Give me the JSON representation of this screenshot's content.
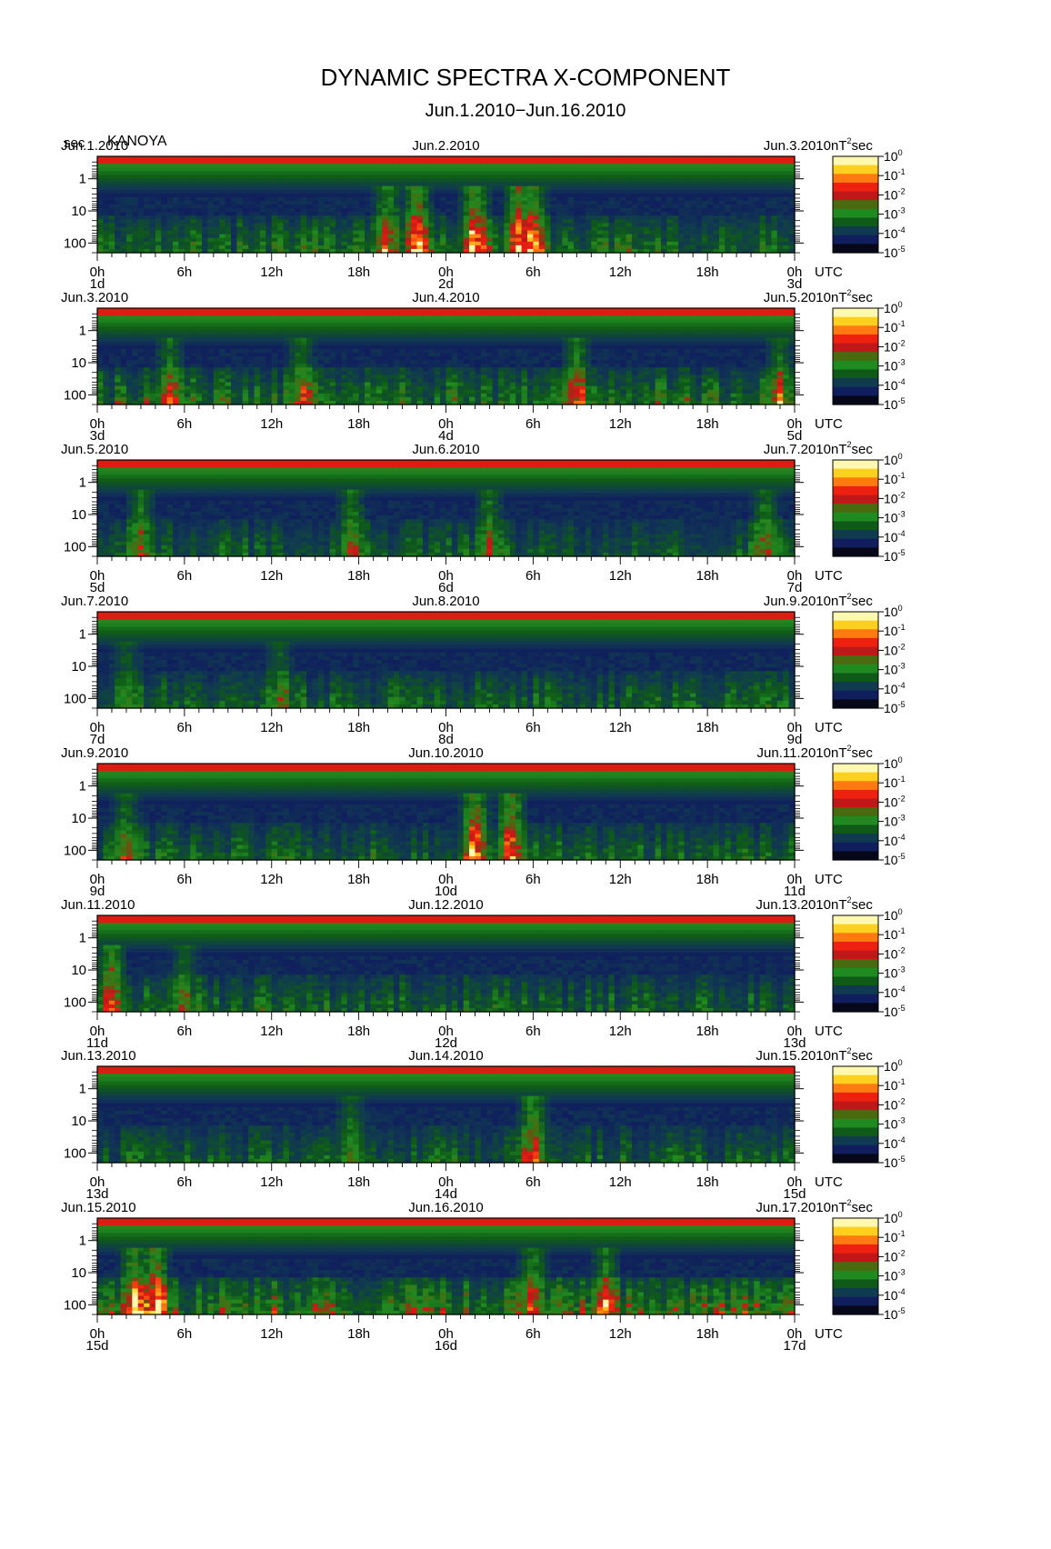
{
  "title": "DYNAMIC SPECTRA X-COMPONENT",
  "subtitle": "Jun.1.2010−Jun.16.2010",
  "unit_label": "sec",
  "station": "KANOYA",
  "colorbar_unit_base": "nT",
  "colorbar_unit_exp": "2",
  "colorbar_unit_tail": "sec",
  "colorbar_ticks": [
    {
      "base": "10",
      "exp": "0"
    },
    {
      "base": "10",
      "exp": "-1"
    },
    {
      "base": "10",
      "exp": "-2"
    },
    {
      "base": "10",
      "exp": "-3"
    },
    {
      "base": "10",
      "exp": "-4"
    },
    {
      "base": "10",
      "exp": "-5"
    }
  ],
  "colorbar_colors": [
    "#fff8b0",
    "#ffd020",
    "#ff7a10",
    "#ee2010",
    "#c01818",
    "#4a6a10",
    "#1f8a20",
    "#0f5a18",
    "#103a50",
    "#101e5e",
    "#06081a"
  ],
  "y_ticks": [
    "1",
    "10",
    "100"
  ],
  "x_ticks": [
    "0h",
    "6h",
    "12h",
    "18h",
    "0h",
    "6h",
    "12h",
    "18h",
    "0h"
  ],
  "utc_label": "UTC",
  "chart_data": [
    {
      "type": "heatmap",
      "ylabel": "sec",
      "y_scale": "log",
      "y_ticks": [
        1,
        10,
        100
      ],
      "x_ticks_hours": [
        0,
        6,
        12,
        18,
        24,
        30,
        36,
        42,
        48
      ],
      "date_left": "Jun.1.2010",
      "date_center": "Jun.2.2010",
      "date_right": "Jun.3.2010",
      "day_left": "1d",
      "day_center": "2d",
      "day_right": "3d",
      "activity": 0.55,
      "bursts": [
        [
          20,
          0.7
        ],
        [
          22,
          1.0
        ],
        [
          26,
          1.0
        ],
        [
          29,
          0.95
        ],
        [
          30,
          0.9
        ]
      ]
    },
    {
      "type": "heatmap",
      "ylabel": "sec",
      "y_scale": "log",
      "y_ticks": [
        1,
        10,
        100
      ],
      "x_ticks_hours": [
        0,
        6,
        12,
        18,
        24,
        30,
        36,
        42,
        48
      ],
      "date_left": "Jun.3.2010",
      "date_center": "Jun.4.2010",
      "date_right": "Jun.5.2010",
      "day_left": "3d",
      "day_center": "4d",
      "day_right": "5d",
      "activity": 0.6,
      "bursts": [
        [
          5,
          0.5
        ],
        [
          14,
          0.55
        ],
        [
          33,
          0.6
        ],
        [
          47,
          0.5
        ]
      ]
    },
    {
      "type": "heatmap",
      "ylabel": "sec",
      "y_scale": "log",
      "y_ticks": [
        1,
        10,
        100
      ],
      "x_ticks_hours": [
        0,
        6,
        12,
        18,
        24,
        30,
        36,
        42,
        48
      ],
      "date_left": "Jun.5.2010",
      "date_center": "Jun.6.2010",
      "date_right": "Jun.7.2010",
      "day_left": "5d",
      "day_center": "6d",
      "day_right": "7d",
      "activity": 0.45,
      "bursts": [
        [
          3,
          0.55
        ],
        [
          17.5,
          0.55
        ],
        [
          27,
          0.5
        ],
        [
          46,
          0.55
        ]
      ]
    },
    {
      "type": "heatmap",
      "ylabel": "sec",
      "y_scale": "log",
      "y_ticks": [
        1,
        10,
        100
      ],
      "x_ticks_hours": [
        0,
        6,
        12,
        18,
        24,
        30,
        36,
        42,
        48
      ],
      "date_left": "Jun.7.2010",
      "date_center": "Jun.8.2010",
      "date_right": "Jun.9.2010",
      "day_left": "7d",
      "day_center": "8d",
      "day_right": "9d",
      "activity": 0.5,
      "bursts": [
        [
          2,
          0.4
        ],
        [
          12.5,
          0.4
        ]
      ]
    },
    {
      "type": "heatmap",
      "ylabel": "sec",
      "y_scale": "log",
      "y_ticks": [
        1,
        10,
        100
      ],
      "x_ticks_hours": [
        0,
        6,
        12,
        18,
        24,
        30,
        36,
        42,
        48
      ],
      "date_left": "Jun.9.2010",
      "date_center": "Jun.10.2010",
      "date_right": "Jun.11.2010",
      "day_left": "9d",
      "day_center": "10d",
      "day_right": "11d",
      "activity": 0.5,
      "bursts": [
        [
          26,
          1.0
        ],
        [
          28.5,
          1.0
        ],
        [
          2,
          0.5
        ]
      ]
    },
    {
      "type": "heatmap",
      "ylabel": "sec",
      "y_scale": "log",
      "y_ticks": [
        1,
        10,
        100
      ],
      "x_ticks_hours": [
        0,
        6,
        12,
        18,
        24,
        30,
        36,
        42,
        48
      ],
      "date_left": "Jun.11.2010",
      "date_center": "Jun.12.2010",
      "date_right": "Jun.13.2010",
      "day_left": "11d",
      "day_center": "12d",
      "day_right": "13d",
      "activity": 0.5,
      "bursts": [
        [
          1,
          0.8
        ],
        [
          6,
          0.45
        ]
      ]
    },
    {
      "type": "heatmap",
      "ylabel": "sec",
      "y_scale": "log",
      "y_ticks": [
        1,
        10,
        100
      ],
      "x_ticks_hours": [
        0,
        6,
        12,
        18,
        24,
        30,
        36,
        42,
        48
      ],
      "date_left": "Jun.13.2010",
      "date_center": "Jun.14.2010",
      "date_right": "Jun.15.2010",
      "day_left": "13d",
      "day_center": "14d",
      "day_right": "15d",
      "activity": 0.45,
      "bursts": [
        [
          30,
          0.8
        ],
        [
          17.5,
          0.45
        ]
      ]
    },
    {
      "type": "heatmap",
      "ylabel": "sec",
      "y_scale": "log",
      "y_ticks": [
        1,
        10,
        100
      ],
      "x_ticks_hours": [
        0,
        6,
        12,
        18,
        24,
        30,
        36,
        42,
        48
      ],
      "date_left": "Jun.15.2010",
      "date_center": "Jun.16.2010",
      "date_right": "Jun.17.2010",
      "day_left": "15d",
      "day_center": "16d",
      "day_right": "17d",
      "activity": 0.75,
      "bursts": [
        [
          4,
          1.0
        ],
        [
          2.5,
          0.8
        ],
        [
          30,
          0.7
        ],
        [
          35,
          0.6
        ]
      ]
    }
  ]
}
